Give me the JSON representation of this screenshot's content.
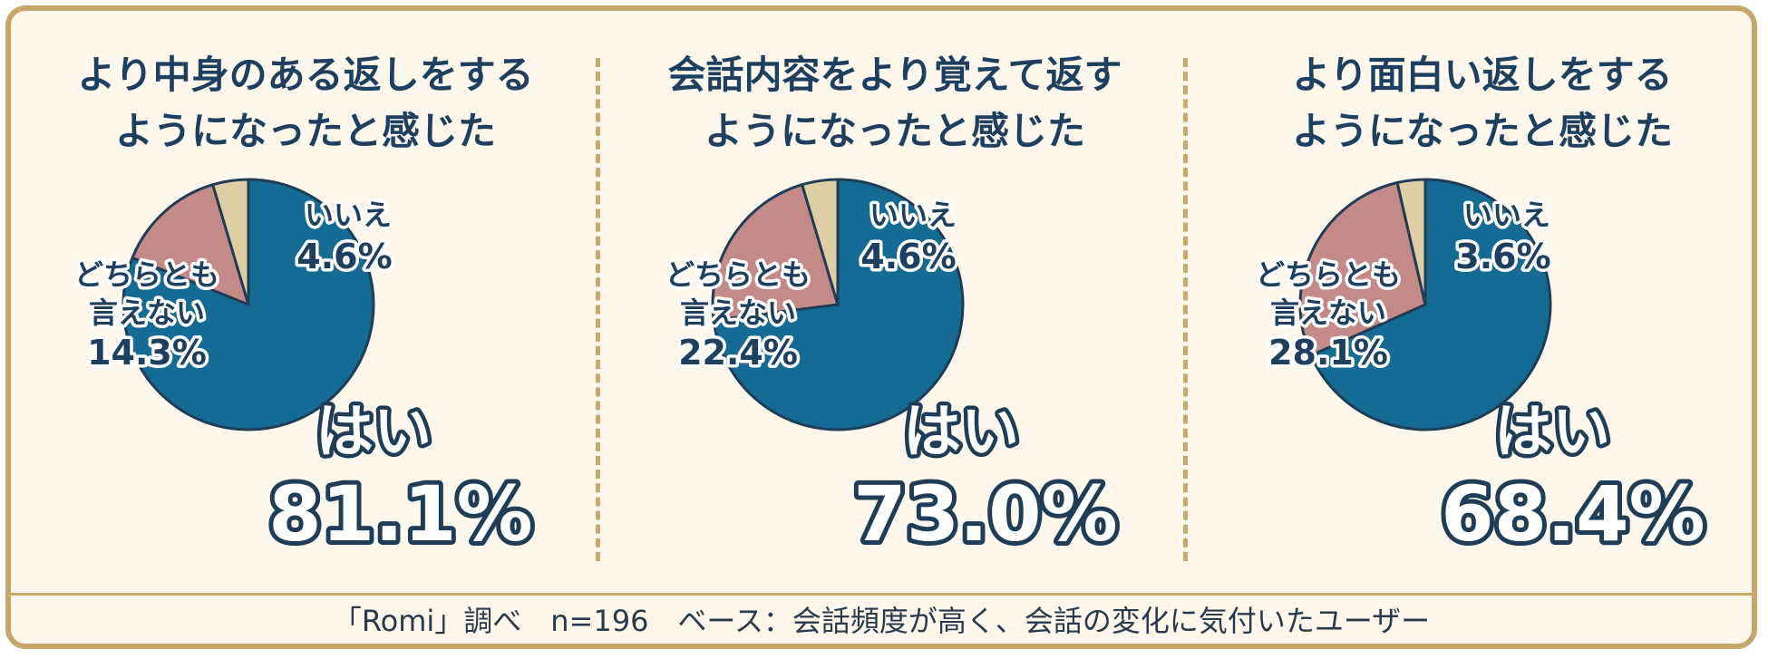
{
  "colors": {
    "yes": "#146b93",
    "neither": "#c48a88",
    "no": "#dfcda3",
    "stroke": "#1f3d56",
    "label_dark": "#1e4060",
    "frame": "#c6a66a",
    "background": "#fdf7ec"
  },
  "chart_data": [
    {
      "type": "pie",
      "title_lines": [
        "より中身のある返しをする",
        "ようになったと感じた"
      ],
      "categories": [
        "はい",
        "どちらとも言えない",
        "いいえ"
      ],
      "values": [
        81.1,
        14.3,
        4.6
      ],
      "labels": {
        "yes": {
          "name": "はい",
          "value": "81.1%"
        },
        "neither": {
          "name_line1": "どちらとも",
          "name_line2": "言えない",
          "value": "14.3%"
        },
        "no": {
          "name": "いいえ",
          "value": "4.6%"
        }
      }
    },
    {
      "type": "pie",
      "title_lines": [
        "会話内容をより覚えて返す",
        "ようになったと感じた"
      ],
      "categories": [
        "はい",
        "どちらとも言えない",
        "いいえ"
      ],
      "values": [
        73.0,
        22.4,
        4.6
      ],
      "labels": {
        "yes": {
          "name": "はい",
          "value": "73.0%"
        },
        "neither": {
          "name_line1": "どちらとも",
          "name_line2": "言えない",
          "value": "22.4%"
        },
        "no": {
          "name": "いいえ",
          "value": "4.6%"
        }
      }
    },
    {
      "type": "pie",
      "title_lines": [
        "より面白い返しをする",
        "ようになったと感じた"
      ],
      "categories": [
        "はい",
        "どちらとも言えない",
        "いいえ"
      ],
      "values": [
        68.4,
        28.1,
        3.6
      ],
      "labels": {
        "yes": {
          "name": "はい",
          "value": "68.4%"
        },
        "neither": {
          "name_line1": "どちらとも",
          "name_line2": "言えない",
          "value": "28.1%"
        },
        "no": {
          "name": "いいえ",
          "value": "3.6%"
        }
      }
    }
  ],
  "footer": "「Romi」調べ　n=196　ベース：会話頻度が高く、会話の変化に気付いたユーザー"
}
